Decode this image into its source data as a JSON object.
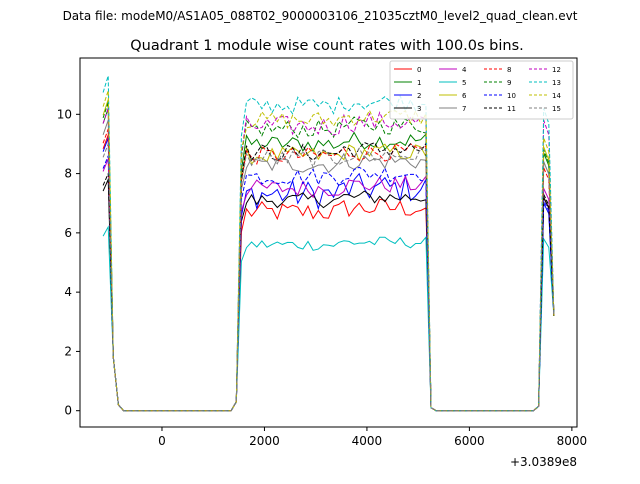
{
  "figure": {
    "suptitle": "Data file: modeM0/AS1A05_088T02_9000003106_21035cztM0_level2_quad_clean.evt",
    "title": "Quadrant 1 module wise count rates with 100.0s bins.",
    "x_offset_label": "+3.0389e8"
  },
  "chart_data": {
    "type": "line",
    "title": "Quadrant 1 module wise count rates with 100.0s bins.",
    "xlabel": "",
    "ylabel": "",
    "x_offset": 303890000,
    "xlim": [
      -1600,
      8100
    ],
    "ylim": [
      -0.55,
      11.9
    ],
    "xticks": [
      0,
      2000,
      4000,
      6000,
      8000
    ],
    "xtick_labels": [
      "0",
      "2000",
      "4000",
      "6000",
      "8000"
    ],
    "yticks": [
      0,
      2,
      4,
      6,
      8,
      10
    ],
    "ytick_labels": [
      "0",
      "2",
      "4",
      "6",
      "8",
      "10"
    ],
    "grid": false,
    "legend_position": "top-right",
    "segments": [
      {
        "start": -1150,
        "end": -850
      },
      {
        "start": 1450,
        "end": 5250
      },
      {
        "start": 7350,
        "end": 7650
      }
    ],
    "series": [
      {
        "name": "0",
        "color": "#ff0000",
        "dash": "solid",
        "peak": 9.3,
        "plateau": 6.7,
        "tail": 7.2,
        "noise": 0.35
      },
      {
        "name": "1",
        "color": "#008000",
        "dash": "solid",
        "peak": 10.2,
        "plateau": 9.0,
        "tail": 8.7,
        "noise": 0.3
      },
      {
        "name": "2",
        "color": "#0000ff",
        "dash": "solid",
        "peak": 9.2,
        "plateau": 7.3,
        "tail": 7.0,
        "noise": 0.5
      },
      {
        "name": "3",
        "color": "#000000",
        "dash": "solid",
        "peak": 7.8,
        "plateau": 7.1,
        "tail": 7.2,
        "noise": 0.25
      },
      {
        "name": "4",
        "color": "#bf00bf",
        "dash": "solid",
        "peak": 8.5,
        "plateau": 7.5,
        "tail": 7.5,
        "noise": 0.3
      },
      {
        "name": "5",
        "color": "#00bfbf",
        "dash": "solid",
        "peak": 6.2,
        "plateau": 5.6,
        "tail": 5.8,
        "noise": 0.2
      },
      {
        "name": "6",
        "color": "#bfbf00",
        "dash": "solid",
        "peak": 10.5,
        "plateau": 8.6,
        "tail": 8.9,
        "noise": 0.3
      },
      {
        "name": "7",
        "color": "#808080",
        "dash": "solid",
        "peak": 9.8,
        "plateau": 8.3,
        "tail": 8.4,
        "noise": 0.3
      },
      {
        "name": "8",
        "color": "#ff0000",
        "dash": "dashed",
        "peak": 9.5,
        "plateau": 8.6,
        "tail": 8.2,
        "noise": 0.3
      },
      {
        "name": "9",
        "color": "#008000",
        "dash": "dashed",
        "peak": 10.4,
        "plateau": 9.5,
        "tail": 8.8,
        "noise": 0.3
      },
      {
        "name": "10",
        "color": "#0000ff",
        "dash": "dashed",
        "peak": 8.6,
        "plateau": 7.9,
        "tail": 7.1,
        "noise": 0.3
      },
      {
        "name": "11",
        "color": "#000000",
        "dash": "dashed",
        "peak": 8.0,
        "plateau": 8.7,
        "tail": 7.3,
        "noise": 0.3
      },
      {
        "name": "12",
        "color": "#bf00bf",
        "dash": "dashed",
        "peak": 10.2,
        "plateau": 9.6,
        "tail": 9.8,
        "noise": 0.35
      },
      {
        "name": "13",
        "color": "#00bfbf",
        "dash": "dashed",
        "peak": 11.3,
        "plateau": 10.3,
        "tail": 10.2,
        "noise": 0.3
      },
      {
        "name": "14",
        "color": "#bfbf00",
        "dash": "dashed",
        "peak": 10.8,
        "plateau": 9.8,
        "tail": 9.2,
        "noise": 0.3
      },
      {
        "name": "15",
        "color": "#808080",
        "dash": "dashed",
        "peak": 9.0,
        "plateau": 8.5,
        "tail": 8.4,
        "noise": 0.3
      }
    ]
  }
}
